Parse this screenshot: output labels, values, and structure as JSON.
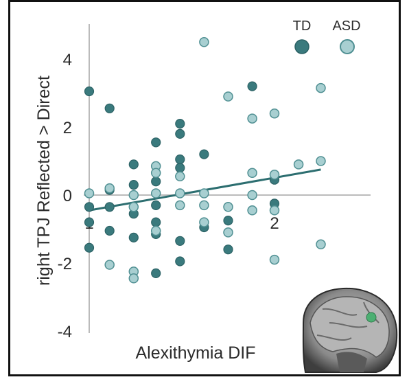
{
  "chart_data": {
    "type": "scatter",
    "xlabel": "Alexithymia DIF",
    "ylabel": "right TPJ Reflected > Direct",
    "xlim": [
      1,
      2.35
    ],
    "ylim": [
      -4,
      5
    ],
    "x_ticks": [
      1,
      2
    ],
    "y_ticks": [
      4,
      2,
      0,
      -2,
      -4
    ],
    "grid": false,
    "legend_position": "top-right",
    "colors": {
      "TD": "#3a7a7d",
      "ASD": "#a8cfd1",
      "ASD_edge": "#4f8f92",
      "TD_edge": "#2c6265",
      "trend": "#2c6e70",
      "axis": "#bbbbbb"
    },
    "series": [
      {
        "name": "TD",
        "points": [
          [
            1.0,
            3.05
          ],
          [
            1.0,
            -0.35
          ],
          [
            1.0,
            -0.8
          ],
          [
            1.0,
            -1.55
          ],
          [
            1.11,
            2.55
          ],
          [
            1.11,
            0.15
          ],
          [
            1.11,
            -0.35
          ],
          [
            1.11,
            -1.05
          ],
          [
            1.24,
            0.9
          ],
          [
            1.24,
            0.3
          ],
          [
            1.24,
            -0.55
          ],
          [
            1.24,
            -1.25
          ],
          [
            1.36,
            1.55
          ],
          [
            1.36,
            0.4
          ],
          [
            1.36,
            -0.3
          ],
          [
            1.36,
            -0.8
          ],
          [
            1.36,
            -1.15
          ],
          [
            1.36,
            -2.3
          ],
          [
            1.49,
            2.1
          ],
          [
            1.49,
            1.8
          ],
          [
            1.49,
            1.05
          ],
          [
            1.49,
            0.8
          ],
          [
            1.49,
            -1.35
          ],
          [
            1.49,
            -1.95
          ],
          [
            1.62,
            1.2
          ],
          [
            1.62,
            -0.95
          ],
          [
            1.75,
            -0.75
          ],
          [
            1.75,
            -1.6
          ],
          [
            1.88,
            3.2
          ],
          [
            2.0,
            0.45
          ],
          [
            2.0,
            -0.25
          ]
        ]
      },
      {
        "name": "ASD",
        "points": [
          [
            1.0,
            0.05
          ],
          [
            1.11,
            0.2
          ],
          [
            1.11,
            -2.05
          ],
          [
            1.24,
            0.0
          ],
          [
            1.24,
            -0.35
          ],
          [
            1.24,
            -2.25
          ],
          [
            1.24,
            -2.45
          ],
          [
            1.36,
            0.85
          ],
          [
            1.36,
            0.65
          ],
          [
            1.36,
            0.05
          ],
          [
            1.36,
            -1.05
          ],
          [
            1.49,
            0.55
          ],
          [
            1.49,
            0.05
          ],
          [
            1.49,
            -0.3
          ],
          [
            1.62,
            4.5
          ],
          [
            1.62,
            0.05
          ],
          [
            1.62,
            -0.3
          ],
          [
            1.62,
            -0.8
          ],
          [
            1.75,
            2.9
          ],
          [
            1.75,
            -0.35
          ],
          [
            1.75,
            -1.1
          ],
          [
            1.88,
            2.25
          ],
          [
            1.88,
            0.65
          ],
          [
            1.88,
            0.0
          ],
          [
            1.88,
            -0.45
          ],
          [
            2.0,
            2.4
          ],
          [
            2.0,
            0.6
          ],
          [
            2.0,
            -0.45
          ],
          [
            2.0,
            -1.9
          ],
          [
            2.13,
            0.9
          ],
          [
            2.25,
            3.15
          ],
          [
            2.25,
            1.0
          ],
          [
            2.25,
            -1.45
          ]
        ]
      }
    ],
    "trend_line": {
      "x": [
        1.0,
        2.25
      ],
      "y": [
        -0.45,
        0.75
      ]
    }
  }
}
